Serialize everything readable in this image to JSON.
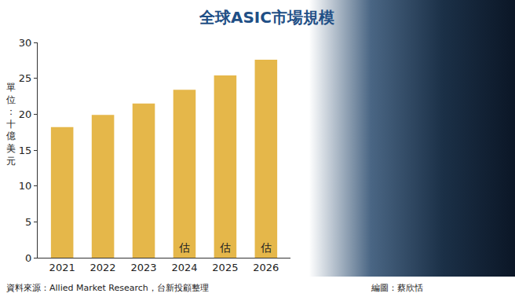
{
  "chart_data": {
    "type": "bar",
    "title": "全球ASIC市場規模",
    "ylabel": "單位：十億美元",
    "categories": [
      "2021",
      "2022",
      "2023",
      "2024",
      "2025",
      "2026"
    ],
    "values": [
      18.2,
      19.9,
      21.5,
      23.4,
      25.4,
      27.6
    ],
    "color": "#e5b74a",
    "ylim": [
      0,
      30
    ],
    "yticks": [
      0,
      5,
      10,
      15,
      20,
      25,
      30
    ],
    "grid": false,
    "annotations": [
      {
        "category": "2024",
        "text": "估"
      },
      {
        "category": "2025",
        "text": "估"
      },
      {
        "category": "2026",
        "text": "估"
      }
    ],
    "source": "資料來源：Allied Market Research，台新投顧整理",
    "credit": "編圖：蔡欣恬"
  }
}
